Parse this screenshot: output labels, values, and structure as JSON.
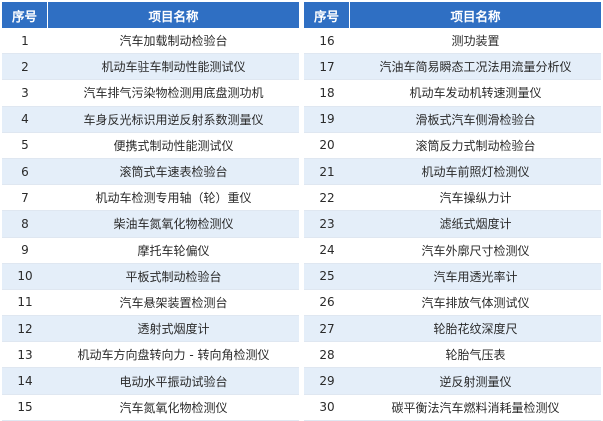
{
  "headers": {
    "no": "序号",
    "name": "项目名称"
  },
  "left": [
    {
      "no": "1",
      "name": "汽车加载制动检验台"
    },
    {
      "no": "2",
      "name": "机动车驻车制动性能测试仪"
    },
    {
      "no": "3",
      "name": "汽车排气污染物检测用底盘测功机"
    },
    {
      "no": "4",
      "name": "车身反光标识用逆反射系数测量仪"
    },
    {
      "no": "5",
      "name": "便携式制动性能测试仪"
    },
    {
      "no": "6",
      "name": "滚筒式车速表检验台"
    },
    {
      "no": "7",
      "name": "机动车检测专用轴（轮）重仪"
    },
    {
      "no": "8",
      "name": "柴油车氮氧化物检测仪"
    },
    {
      "no": "9",
      "name": "摩托车轮偏仪"
    },
    {
      "no": "10",
      "name": "平板式制动检验台"
    },
    {
      "no": "11",
      "name": "汽车悬架装置检测台"
    },
    {
      "no": "12",
      "name": "透射式烟度计"
    },
    {
      "no": "13",
      "name": "机动车方向盘转向力 - 转向角检测仪"
    },
    {
      "no": "14",
      "name": "电动水平振动试验台"
    },
    {
      "no": "15",
      "name": "汽车氮氧化物检测仪"
    }
  ],
  "right": [
    {
      "no": "16",
      "name": "测功装置"
    },
    {
      "no": "17",
      "name": "汽油车简易瞬态工况法用流量分析仪"
    },
    {
      "no": "18",
      "name": "机动车发动机转速测量仪"
    },
    {
      "no": "19",
      "name": "滑板式汽车侧滑检验台"
    },
    {
      "no": "20",
      "name": "滚筒反力式制动检验台"
    },
    {
      "no": "21",
      "name": "机动车前照灯检测仪"
    },
    {
      "no": "22",
      "name": "汽车操纵力计"
    },
    {
      "no": "23",
      "name": "滤纸式烟度计"
    },
    {
      "no": "24",
      "name": "汽车外廓尺寸检测仪"
    },
    {
      "no": "25",
      "name": "汽车用透光率计"
    },
    {
      "no": "26",
      "name": "汽车排放气体测试仪"
    },
    {
      "no": "27",
      "name": "轮胎花纹深度尺"
    },
    {
      "no": "28",
      "name": "轮胎气压表"
    },
    {
      "no": "29",
      "name": "逆反射测量仪"
    },
    {
      "no": "30",
      "name": "碳平衡法汽车燃料消耗量检测仪"
    }
  ],
  "colors": {
    "header_bg": "#2f6fc3",
    "alt_row_bg": "#e4eef9"
  }
}
